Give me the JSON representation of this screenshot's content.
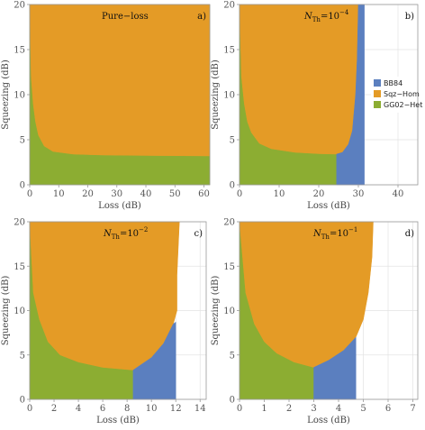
{
  "colors": {
    "bb84": "#5b7fbf",
    "sqz_hom": "#e49b26",
    "gg02_het": "#8cad32",
    "grid": "#e3e3e3",
    "axis": "#999999"
  },
  "legend": [
    {
      "key": "bb84",
      "label": "BB84"
    },
    {
      "key": "sqz_hom",
      "label": "Sqz−Hom"
    },
    {
      "key": "gg02_het",
      "label": "GG02−Het"
    }
  ],
  "chart_data": [
    {
      "type": "area",
      "panel_label": "a)",
      "title_text": "Pure−loss",
      "title_kind": "plain",
      "xlabel": "Loss (dB)",
      "ylabel": "Squeezing (dB)",
      "xlim": [
        0,
        62
      ],
      "ylim": [
        0,
        20
      ],
      "xticks": [
        0,
        10,
        20,
        30,
        40,
        50,
        60
      ],
      "yticks": [
        0,
        5,
        10,
        15,
        20
      ],
      "grid": true,
      "legend_position": "none",
      "regions": {
        "gg02_het": [
          [
            0,
            0
          ],
          [
            62,
            0
          ],
          [
            62,
            3.2
          ],
          [
            40,
            3.25
          ],
          [
            25,
            3.3
          ],
          [
            15,
            3.4
          ],
          [
            8,
            3.7
          ],
          [
            5,
            4.3
          ],
          [
            3,
            5.5
          ],
          [
            2,
            7
          ],
          [
            1.2,
            9
          ],
          [
            0.5,
            12
          ],
          [
            0,
            20
          ]
        ],
        "sqz_hom": [
          [
            0,
            20
          ],
          [
            0.5,
            12
          ],
          [
            1.2,
            9
          ],
          [
            2,
            7
          ],
          [
            3,
            5.5
          ],
          [
            5,
            4.3
          ],
          [
            8,
            3.7
          ],
          [
            15,
            3.4
          ],
          [
            25,
            3.3
          ],
          [
            40,
            3.25
          ],
          [
            62,
            3.2
          ],
          [
            62,
            20
          ]
        ]
      }
    },
    {
      "type": "area",
      "panel_label": "b)",
      "title_text": "N",
      "title_sub": "Th",
      "title_eq": "=10",
      "title_sup": "−4",
      "title_kind": "nth",
      "xlabel": "Loss (dB)",
      "ylabel": "Squeezing (dB)",
      "xlim": [
        0,
        45
      ],
      "ylim": [
        0,
        20
      ],
      "xticks": [
        0,
        10,
        20,
        30,
        40
      ],
      "yticks": [
        0,
        5,
        10,
        15,
        20
      ],
      "grid": true,
      "legend_position": "right",
      "regions": {
        "gg02_het": [
          [
            0,
            0
          ],
          [
            24.5,
            0
          ],
          [
            24.5,
            3.4
          ],
          [
            20,
            3.45
          ],
          [
            14,
            3.6
          ],
          [
            8,
            4
          ],
          [
            5,
            4.6
          ],
          [
            3,
            5.8
          ],
          [
            2,
            7
          ],
          [
            1.2,
            9
          ],
          [
            0.5,
            12
          ],
          [
            0,
            20
          ]
        ],
        "sqz_hom": [
          [
            0,
            20
          ],
          [
            0.5,
            12
          ],
          [
            1.2,
            9
          ],
          [
            2,
            7
          ],
          [
            3,
            5.8
          ],
          [
            5,
            4.6
          ],
          [
            8,
            4
          ],
          [
            14,
            3.6
          ],
          [
            20,
            3.45
          ],
          [
            24.5,
            3.4
          ],
          [
            26,
            3.6
          ],
          [
            27.5,
            4.5
          ],
          [
            28.5,
            6
          ],
          [
            29.3,
            10
          ],
          [
            29.7,
            14
          ],
          [
            30.0,
            20
          ]
        ],
        "bb84": [
          [
            24.5,
            0
          ],
          [
            31.5,
            0
          ],
          [
            31.5,
            20
          ],
          [
            30.0,
            20
          ],
          [
            29.7,
            14
          ],
          [
            29.3,
            10
          ],
          [
            28.5,
            6
          ],
          [
            27.5,
            4.5
          ],
          [
            26,
            3.6
          ],
          [
            24.5,
            3.4
          ]
        ]
      }
    },
    {
      "type": "area",
      "panel_label": "c)",
      "title_text": "N",
      "title_sub": "Th",
      "title_eq": "=10",
      "title_sup": "−2",
      "title_kind": "nth",
      "xlabel": "Loss (dB)",
      "ylabel": "Squeezing (dB)",
      "xlim": [
        0,
        14.5
      ],
      "ylim": [
        0,
        20
      ],
      "xticks": [
        0,
        2,
        4,
        6,
        8,
        10,
        12,
        14
      ],
      "yticks": [
        0,
        5,
        10,
        15,
        20
      ],
      "grid": true,
      "legend_position": "none",
      "regions": {
        "gg02_het": [
          [
            0,
            0
          ],
          [
            8.5,
            0
          ],
          [
            8.5,
            3.3
          ],
          [
            6,
            3.6
          ],
          [
            4,
            4.2
          ],
          [
            2.5,
            5
          ],
          [
            1.5,
            6.5
          ],
          [
            0.8,
            9
          ],
          [
            0.3,
            12
          ],
          [
            0,
            20
          ]
        ],
        "sqz_hom": [
          [
            0,
            20
          ],
          [
            0.3,
            12
          ],
          [
            0.8,
            9
          ],
          [
            1.5,
            6.5
          ],
          [
            2.5,
            5
          ],
          [
            4,
            4.2
          ],
          [
            6,
            3.6
          ],
          [
            8.5,
            3.3
          ],
          [
            10,
            4.7
          ],
          [
            11,
            6.3
          ],
          [
            11.8,
            8.5
          ],
          [
            12.1,
            10
          ],
          [
            12.1,
            14
          ],
          [
            12.3,
            20
          ]
        ],
        "bb84": [
          [
            8.5,
            0
          ],
          [
            12.0,
            0
          ],
          [
            12.0,
            8.7
          ],
          [
            11.8,
            8.5
          ],
          [
            11,
            6.3
          ],
          [
            10,
            4.7
          ],
          [
            8.5,
            3.3
          ]
        ]
      }
    },
    {
      "type": "area",
      "panel_label": "d)",
      "title_text": "N",
      "title_sub": "Th",
      "title_eq": "=10",
      "title_sup": "−1",
      "title_kind": "nth",
      "xlabel": "Loss (dB)",
      "ylabel": "Squeezing (dB)",
      "xlim": [
        0,
        7.2
      ],
      "ylim": [
        0,
        20
      ],
      "xticks": [
        0,
        1,
        2,
        3,
        4,
        5,
        6,
        7
      ],
      "yticks": [
        0,
        5,
        10,
        15,
        20
      ],
      "grid": true,
      "legend_position": "none",
      "regions": {
        "gg02_het": [
          [
            0,
            0
          ],
          [
            3.0,
            0
          ],
          [
            3.0,
            3.6
          ],
          [
            2.2,
            4.2
          ],
          [
            1.5,
            5.2
          ],
          [
            1,
            6.5
          ],
          [
            0.6,
            8.5
          ],
          [
            0.25,
            12
          ],
          [
            0,
            20
          ]
        ],
        "sqz_hom": [
          [
            0,
            20
          ],
          [
            0.25,
            12
          ],
          [
            0.6,
            8.5
          ],
          [
            1,
            6.5
          ],
          [
            1.5,
            5.2
          ],
          [
            2.2,
            4.2
          ],
          [
            3.0,
            3.6
          ],
          [
            3.6,
            4.4
          ],
          [
            4.2,
            5.5
          ],
          [
            4.7,
            7
          ],
          [
            5.0,
            9
          ],
          [
            5.2,
            12
          ],
          [
            5.35,
            16
          ],
          [
            5.4,
            20
          ]
        ],
        "bb84": [
          [
            3.0,
            0
          ],
          [
            4.7,
            0
          ],
          [
            4.7,
            7
          ],
          [
            4.2,
            5.5
          ],
          [
            3.6,
            4.4
          ],
          [
            3.0,
            3.6
          ]
        ]
      }
    }
  ]
}
